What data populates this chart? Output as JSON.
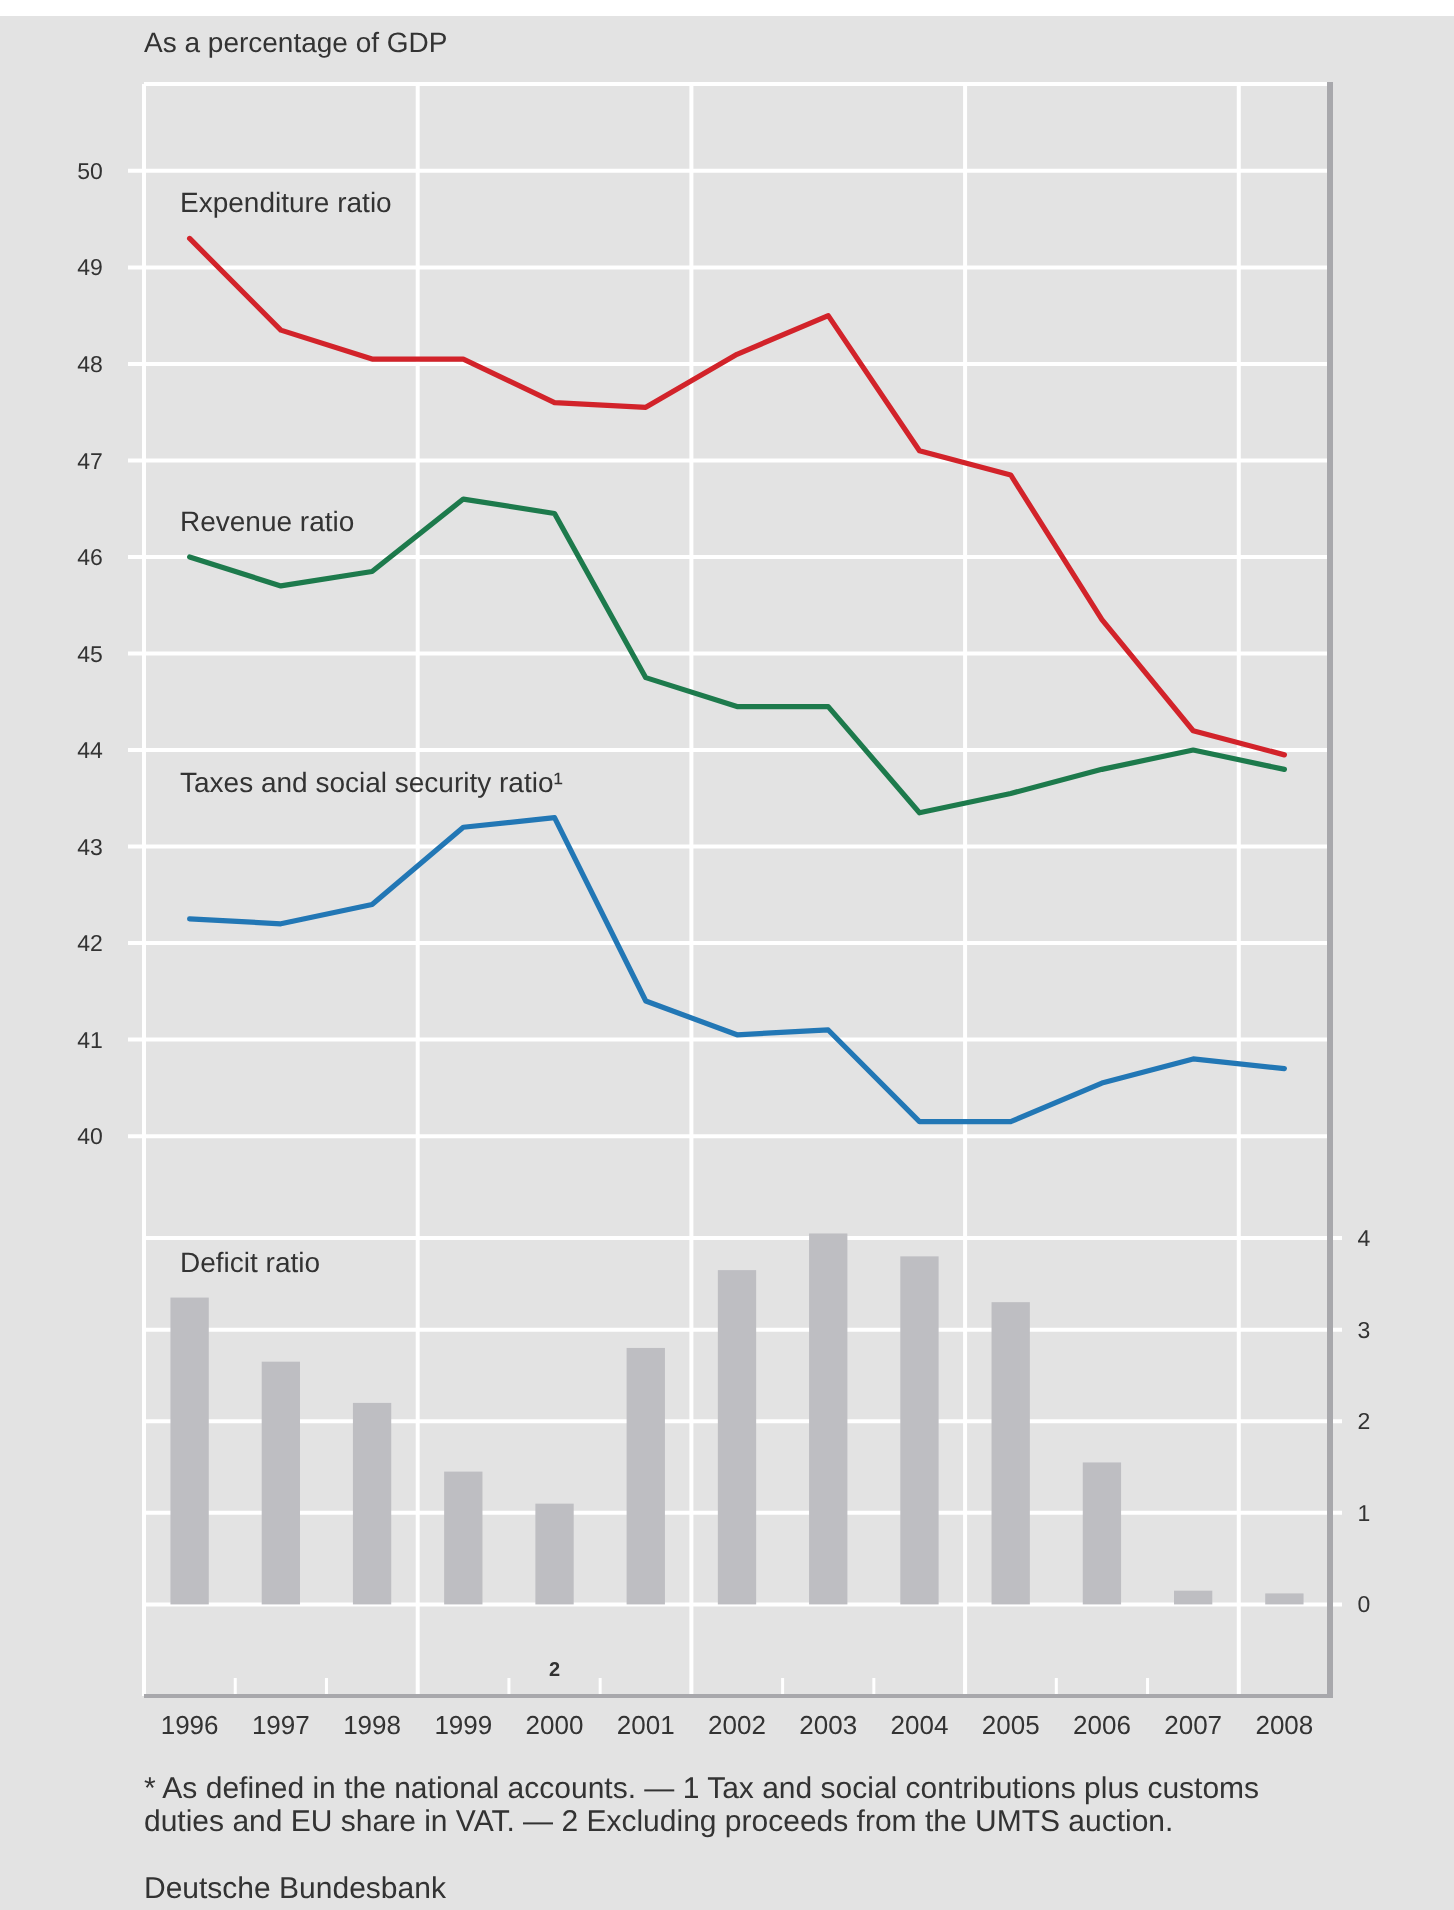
{
  "chart_data": {
    "type": "line",
    "ylabel": "As a percentage of GDP",
    "x": [
      1996,
      1997,
      1998,
      1999,
      2000,
      2001,
      2002,
      2003,
      2004,
      2005,
      2006,
      2007,
      2008
    ],
    "xlim": [
      1995.5,
      2008.5
    ],
    "xticks": [
      {
        "value": 1996,
        "label": "1996"
      },
      {
        "value": 1997,
        "label": "1997"
      },
      {
        "value": 1998,
        "label": "1998"
      },
      {
        "value": 1999,
        "label": "1999"
      },
      {
        "value": 2000,
        "label": "2000$^{2}$"
      },
      {
        "value": 2001,
        "label": "2001"
      },
      {
        "value": 2002,
        "label": "2002"
      },
      {
        "value": 2003,
        "label": "2003"
      },
      {
        "value": 2004,
        "label": "2004"
      },
      {
        "value": 2005,
        "label": "2005"
      },
      {
        "value": 2006,
        "label": "2006"
      },
      {
        "value": 2007,
        "label": "2007"
      },
      {
        "value": 2008,
        "label": "2008"
      },
      {
        "value": 1996.5,
        "label": null
      },
      {
        "value": 1997.5,
        "label": null
      },
      {
        "value": 1998.5,
        "label": null
      },
      {
        "value": 1999.5,
        "label": null
      },
      {
        "value": 2000.5,
        "label": null
      },
      {
        "value": 2001.5,
        "label": null
      },
      {
        "value": 2002.5,
        "label": null
      },
      {
        "value": 2003.5,
        "label": null
      },
      {
        "value": 2004.5,
        "label": null
      },
      {
        "value": 2005.5,
        "label": null
      },
      {
        "value": 2006.5,
        "label": null
      },
      {
        "value": 2007.5,
        "label": null
      }
    ],
    "ylim": [
      34.2,
      50.9
    ],
    "yticks": [
      40,
      41,
      42,
      43,
      44,
      45,
      46,
      47,
      48,
      49,
      50
    ],
    "y2lim": [
      -1,
      16.6
    ],
    "y2ticks": [
      0,
      1,
      2,
      3,
      4
    ],
    "grid": "y",
    "ref_lines": [
      {
        "axis": "x",
        "value": 1998.5,
        "color": "#ffffff"
      },
      {
        "axis": "x",
        "value": 2001.5,
        "color": "#ffffff"
      },
      {
        "axis": "x",
        "value": 2004.5,
        "color": "#ffffff"
      },
      {
        "axis": "x",
        "value": 2007.5,
        "color": "#ffffff"
      }
    ],
    "series": [
      {
        "name": "Expenditure ratio",
        "color": "#d2232a",
        "values": [
          49.3,
          48.35,
          48.05,
          48.05,
          47.6,
          47.55,
          48.1,
          48.5,
          47.1,
          46.85,
          45.35,
          44.2,
          43.95
        ]
      },
      {
        "name": "Revenue ratio",
        "color": "#1d7a4c",
        "values": [
          46.0,
          45.7,
          45.85,
          46.6,
          46.45,
          44.75,
          44.45,
          44.45,
          43.35,
          43.55,
          43.8,
          44.0,
          43.8
        ]
      },
      {
        "name": "Taxes and social security ratio¹",
        "color": "#2277b5",
        "values": [
          42.25,
          42.2,
          42.4,
          43.2,
          43.3,
          41.4,
          41.05,
          41.1,
          40.15,
          40.15,
          40.55,
          40.8,
          40.7
        ]
      },
      {
        "name": "Deficit ratio",
        "type": "bar",
        "axis": "y2",
        "color": "#bebec2",
        "values": [
          3.35,
          2.65,
          2.2,
          1.45,
          1.1,
          2.8,
          3.65,
          4.05,
          3.8,
          3.3,
          1.55,
          0.15,
          0.12
        ]
      }
    ],
    "annotations": [
      "* As defined in the national accounts. — 1 Tax and social contributions plus customs duties and EU share in VAT. — 2 Excluding proceeds from the UMTS auction.",
      "Deutsche Bundesbank"
    ]
  }
}
